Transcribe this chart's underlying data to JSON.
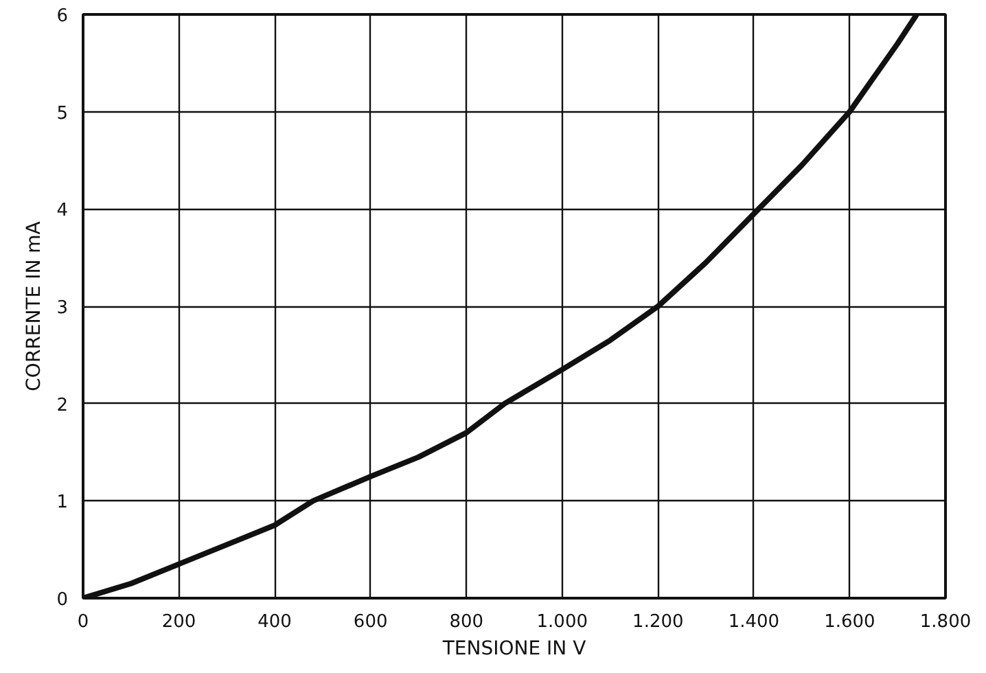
{
  "chart_data": {
    "type": "line",
    "xlabel": "TENSIONE IN V",
    "ylabel": "CORRENTE IN mA",
    "x": [
      0,
      100,
      200,
      300,
      400,
      480,
      600,
      700,
      800,
      880,
      1000,
      1100,
      1200,
      1300,
      1400,
      1500,
      1600,
      1700,
      1740
    ],
    "series": [
      {
        "color": "#111111",
        "values": [
          0,
          0.15,
          0.35,
          0.55,
          0.75,
          1.0,
          1.25,
          1.45,
          1.7,
          2.0,
          2.35,
          2.65,
          3.0,
          3.45,
          3.95,
          4.45,
          5.0,
          5.7,
          6.0
        ]
      }
    ],
    "xlim": [
      0,
      1800
    ],
    "ylim": [
      0,
      6
    ],
    "xticks": [
      0,
      200,
      400,
      600,
      800,
      {
        "value": 1000,
        "label": "1.000"
      },
      {
        "value": 1200,
        "label": "1.200"
      },
      {
        "value": 1400,
        "label": "1.400"
      },
      {
        "value": 1600,
        "label": "1.600"
      },
      {
        "value": 1800,
        "label": "1.800"
      }
    ],
    "yticks": [
      0,
      1,
      2,
      3,
      4,
      5,
      6
    ],
    "grid": true,
    "line_style": "solid",
    "marker": "none"
  }
}
